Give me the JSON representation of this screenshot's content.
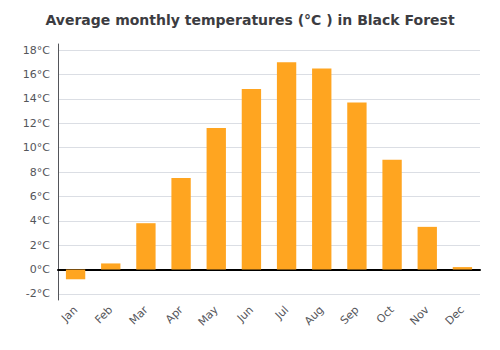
{
  "chart_data": {
    "type": "bar",
    "title": "Average monthly temperatures (°C ) in Black Forest",
    "categories": [
      "Jan",
      "Feb",
      "Mar",
      "Apr",
      "May",
      "Jun",
      "Jul",
      "Aug",
      "Sep",
      "Oct",
      "Nov",
      "Dec"
    ],
    "values": [
      -0.8,
      0.5,
      3.8,
      7.5,
      11.6,
      14.8,
      17.0,
      16.5,
      13.7,
      9.0,
      3.5,
      0.2
    ],
    "color": "#FFA520",
    "ylim": [
      -2.5,
      18.5
    ],
    "yticks": [
      {
        "value": -2,
        "label": "-2°C"
      },
      {
        "value": 0,
        "label": "0°C"
      },
      {
        "value": 2,
        "label": "2°C"
      },
      {
        "value": 4,
        "label": "4°C"
      },
      {
        "value": 6,
        "label": "6°C"
      },
      {
        "value": 8,
        "label": "8°C"
      },
      {
        "value": 10,
        "label": "10°C"
      },
      {
        "value": 12,
        "label": "12°C"
      },
      {
        "value": 14,
        "label": "14°C"
      },
      {
        "value": 16,
        "label": "16°C"
      },
      {
        "value": 18,
        "label": "18°C"
      }
    ],
    "grid": true
  }
}
